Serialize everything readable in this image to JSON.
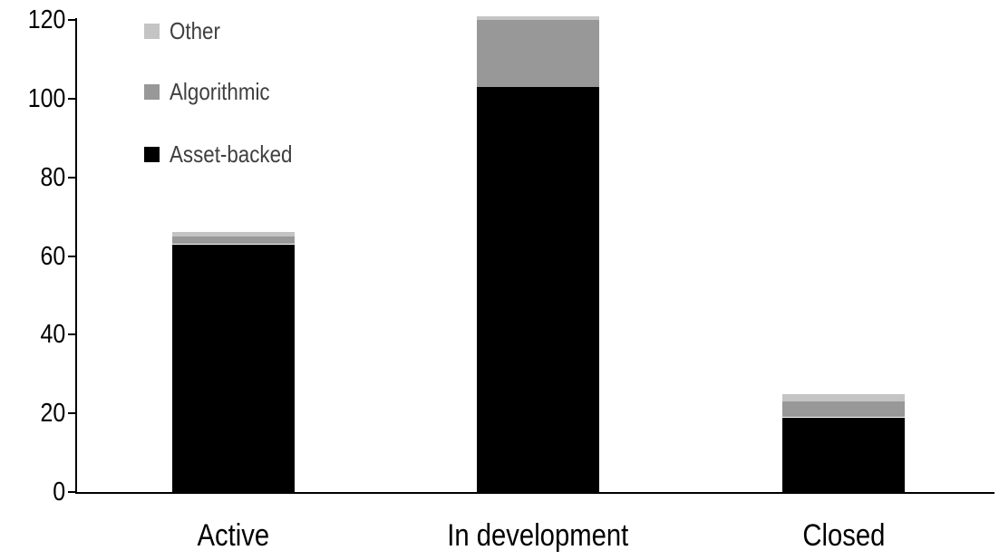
{
  "colors": {
    "asset_backed": "#000000",
    "algorithmic": "#989898",
    "other": "#c4c4c4",
    "axis": "#000000",
    "tick_label_text": "#000000",
    "category_label_text": "#000000",
    "legend_text": "#3f3f3f",
    "background": "#ffffff"
  },
  "chart_data": {
    "type": "bar",
    "stacked": true,
    "title": "",
    "xlabel": "",
    "ylabel": "",
    "grid": false,
    "legend_position": "top-left",
    "categories": [
      "Active",
      "In development",
      "Closed"
    ],
    "series": [
      {
        "name": "Asset-backed",
        "color": "#000000",
        "values": [
          63,
          103,
          19
        ]
      },
      {
        "name": "Algorithmic",
        "color": "#989898",
        "values": [
          2,
          17,
          4
        ]
      },
      {
        "name": "Other",
        "color": "#c4c4c4",
        "values": [
          1,
          1,
          2
        ]
      }
    ],
    "totals": [
      66,
      121,
      25
    ],
    "legend_order": [
      "Other",
      "Algorithmic",
      "Asset-backed"
    ],
    "y_ticks": [
      "0",
      "20",
      "40",
      "60",
      "80",
      "100",
      "120"
    ],
    "y_tick_values": [
      0,
      20,
      40,
      60,
      80,
      100,
      120
    ],
    "ylim": [
      0,
      120
    ]
  }
}
